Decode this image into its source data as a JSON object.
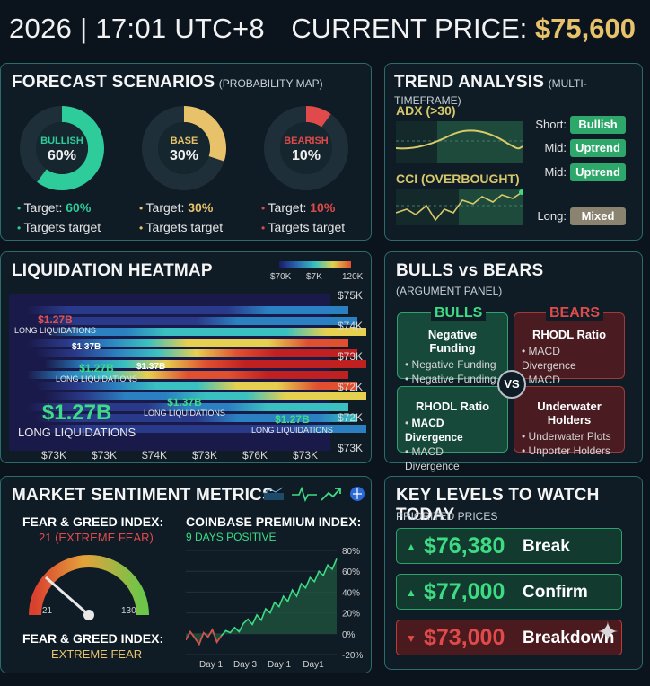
{
  "header": {
    "datetime": "2026 | 17:01 UTC+8",
    "price_label": "CURRENT PRICE:",
    "price_value": "$75,600"
  },
  "forecast": {
    "title": "FORECAST SCENARIOS",
    "subtitle": "(PROBABILITY MAP)",
    "scenarios": [
      {
        "label": "BULLISH",
        "pct": "60%",
        "value": 60,
        "color": "#2ecc9a",
        "target_label": "Target:",
        "target_value": "60%",
        "line2": "Targets target"
      },
      {
        "label": "BASE",
        "pct": "30%",
        "value": 30,
        "color": "#e7c26a",
        "target_label": "Target:",
        "target_value": "30%",
        "line2": "Targets target"
      },
      {
        "label": "BEARISH",
        "pct": "10%",
        "value": 10,
        "color": "#e04a4a",
        "target_label": "Target:",
        "target_value": "10%",
        "line2": "Targets target"
      }
    ]
  },
  "trend": {
    "title": "TREND ANALYSIS",
    "subtitle": "(MULTI-TIMEFRAME)",
    "adx_label": "ADX (>30)",
    "cci_label": "CCI (OVERBOUGHT)",
    "rows": [
      {
        "label": "Short:",
        "chip": "Bullish",
        "color": "#2ea86a"
      },
      {
        "label": "Mid:",
        "chip": "Uptrend",
        "color": "#2ea86a"
      },
      {
        "label": "Mid:",
        "chip": "Uptrend",
        "color": "#2ea86a"
      },
      {
        "label": "Long:",
        "chip": "Mixed",
        "color": "#8a8370"
      }
    ]
  },
  "heatmap": {
    "title": "LIQUIDATION HEATMAP",
    "scale_labels": [
      "$70K",
      "$7K",
      "120K"
    ],
    "y_labels": [
      "$75K",
      "$74K",
      "$73K",
      "$72K",
      "$72K",
      "$73K"
    ],
    "x_labels": [
      "$73K",
      "$73K",
      "$74K",
      "$73K",
      "$76K",
      "$73K"
    ],
    "annotations": [
      {
        "value": "$1.27B",
        "text": "LONG LIQUIDATIONS",
        "color": "#e05252"
      },
      {
        "value": "$1.37B",
        "text": "",
        "color": "#ffffff"
      },
      {
        "value": "$1.27B",
        "text": "LONG LIQUIDATIONS",
        "color": "#3ddc84"
      },
      {
        "value": "$1.37B",
        "text": "",
        "color": "#ffffff"
      },
      {
        "value": "$1.37B",
        "text": "LONG LIQUIDATIONS",
        "color": "#3ddc84"
      },
      {
        "value": "$1.27B",
        "text": "LONG LIQUIDATIONS",
        "color": "#3ddc84"
      },
      {
        "value": "$1.27B",
        "text": "LONG LIQUIDATIONS",
        "color": "#3ddc84"
      }
    ]
  },
  "bullsbears": {
    "title": "BULLS vs BEARS",
    "subtitle": "(ARGUMENT PANEL)",
    "bulls_label": "BULLS",
    "bears_label": "BEARS",
    "vs": "VS",
    "boxes": [
      {
        "head": "Negative Funding",
        "items": [
          "Negative Funding",
          "Negative Funding"
        ]
      },
      {
        "head": "RHODL Ratio",
        "items": [
          "MACD Divergence",
          "MACD Divergence"
        ]
      },
      {
        "head": "RHODL Ratio",
        "items": [
          "MACD Divergence",
          "MACD Divergence"
        ]
      },
      {
        "head": "Underwater Holders",
        "items": [
          "Underwater Plots",
          "Unporter Holders"
        ]
      }
    ]
  },
  "sentiment": {
    "title": "MARKET SENTIMENT METRICS",
    "fg_title": "FEAR & GREED INDEX:",
    "fg_value": "21 (EXTREME FEAR)",
    "gauge_min": "21",
    "gauge_max": "130",
    "fg_title2": "FEAR & GREED INDEX:",
    "fg_value2": "EXTREME FEAR",
    "cb_title": "COINBASE PREMIUM INDEX:",
    "cb_sub": "9 DAYS POSITIVE",
    "y_ticks": [
      "80%",
      "60%",
      "40%",
      "20%",
      "0%",
      "-20%"
    ],
    "x_ticks": [
      "Day 1",
      "Day 3",
      "Day 1",
      "Day1"
    ],
    "series": [
      -6,
      2,
      -4,
      -10,
      1,
      -3,
      4,
      -8,
      -2,
      3,
      1,
      6,
      2,
      10,
      14,
      9,
      18,
      13,
      24,
      20,
      30,
      26,
      36,
      31,
      42,
      36,
      48,
      44,
      54,
      50,
      60,
      56,
      66,
      62,
      72
    ]
  },
  "keylevels": {
    "title": "KEY LEVELS TO WATCH TODAY",
    "subtitle": "PRIORITED PRICES",
    "levels": [
      {
        "price": "$76,380",
        "tag": "Break",
        "dir": "up"
      },
      {
        "price": "$77,000",
        "tag": "Confirm",
        "dir": "up"
      },
      {
        "price": "$73,000",
        "tag": "Breakdown",
        "dir": "down"
      }
    ]
  }
}
